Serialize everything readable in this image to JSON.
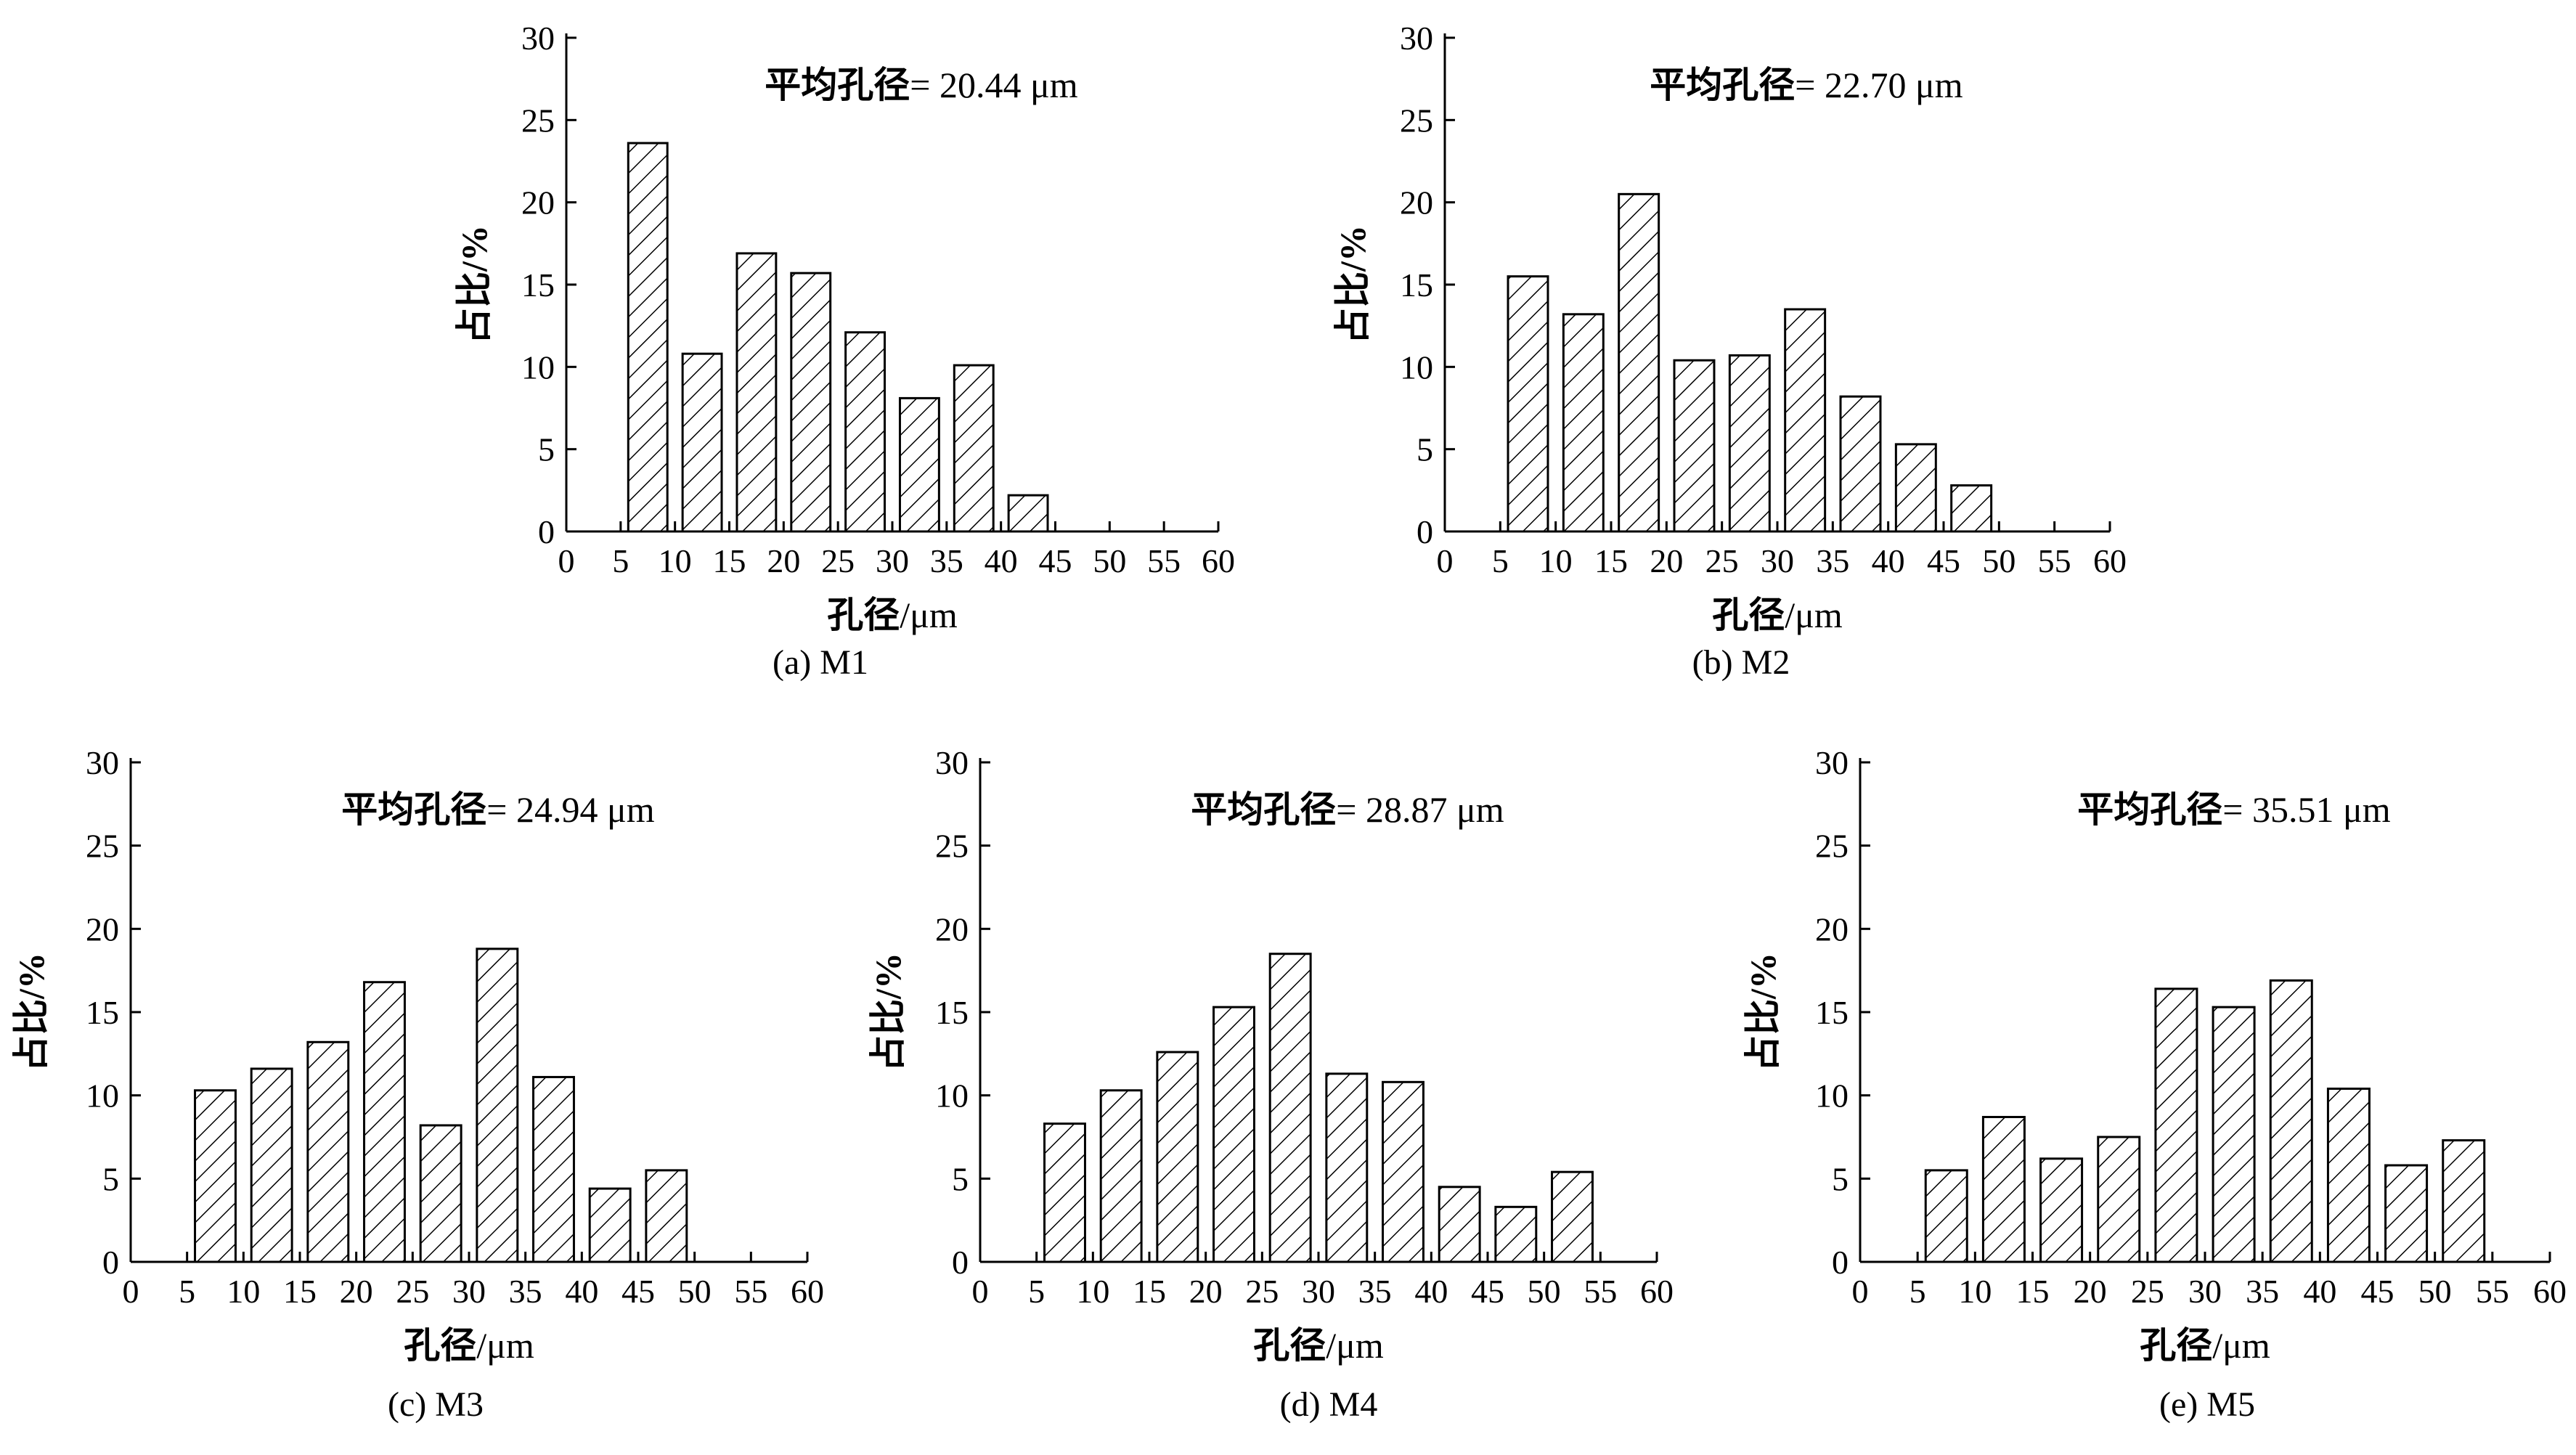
{
  "chart_data": [
    {
      "type": "bar",
      "caption": "(a) M1",
      "annotation": {
        "label": "平均孔径",
        "value": "= 20.44 μm"
      },
      "xlabel": {
        "main": "孔径",
        "unit": "/μm"
      },
      "ylabel": "占比/%",
      "xlim": [
        0,
        60
      ],
      "ylim": [
        0,
        30
      ],
      "xticks": [
        0,
        5,
        10,
        15,
        20,
        25,
        30,
        35,
        40,
        45,
        50,
        55,
        60
      ],
      "yticks": [
        0,
        5,
        10,
        15,
        20,
        25,
        30
      ],
      "bins": [
        [
          5,
          10
        ],
        [
          10,
          15
        ],
        [
          15,
          20
        ],
        [
          20,
          25
        ],
        [
          25,
          30
        ],
        [
          30,
          35
        ],
        [
          35,
          40
        ],
        [
          40,
          45
        ]
      ],
      "values": [
        23.6,
        10.8,
        16.9,
        15.7,
        12.1,
        8.1,
        10.1,
        2.2
      ],
      "grid": false,
      "pattern": "diagonal-hatch"
    },
    {
      "type": "bar",
      "caption": "(b) M2",
      "annotation": {
        "label": "平均孔径",
        "value": "= 22.70 μm"
      },
      "xlabel": {
        "main": "孔径",
        "unit": "/μm"
      },
      "ylabel": "占比/%",
      "xlim": [
        0,
        60
      ],
      "ylim": [
        0,
        30
      ],
      "xticks": [
        0,
        5,
        10,
        15,
        20,
        25,
        30,
        35,
        40,
        45,
        50,
        55,
        60
      ],
      "yticks": [
        0,
        5,
        10,
        15,
        20,
        25,
        30
      ],
      "bins": [
        [
          5,
          10
        ],
        [
          10,
          15
        ],
        [
          15,
          20
        ],
        [
          20,
          25
        ],
        [
          25,
          30
        ],
        [
          30,
          35
        ],
        [
          35,
          40
        ],
        [
          40,
          45
        ],
        [
          45,
          50
        ]
      ],
      "values": [
        15.5,
        13.2,
        20.5,
        10.4,
        10.7,
        13.5,
        8.2,
        5.3,
        2.8
      ],
      "grid": false,
      "pattern": "diagonal-hatch"
    },
    {
      "type": "bar",
      "caption": "(c) M3",
      "annotation": {
        "label": "平均孔径",
        "value": "= 24.94 μm"
      },
      "xlabel": {
        "main": "孔径",
        "unit": "/μm"
      },
      "ylabel": "占比/%",
      "xlim": [
        0,
        60
      ],
      "ylim": [
        0,
        30
      ],
      "xticks": [
        0,
        5,
        10,
        15,
        20,
        25,
        30,
        35,
        40,
        45,
        50,
        55,
        60
      ],
      "yticks": [
        0,
        5,
        10,
        15,
        20,
        25,
        30
      ],
      "bins": [
        [
          5,
          10
        ],
        [
          10,
          15
        ],
        [
          15,
          20
        ],
        [
          20,
          25
        ],
        [
          25,
          30
        ],
        [
          30,
          35
        ],
        [
          35,
          40
        ],
        [
          40,
          45
        ],
        [
          45,
          50
        ]
      ],
      "values": [
        10.3,
        11.6,
        13.2,
        16.8,
        8.2,
        18.8,
        11.1,
        4.4,
        5.5
      ],
      "grid": false,
      "pattern": "diagonal-hatch"
    },
    {
      "type": "bar",
      "caption": "(d) M4",
      "annotation": {
        "label": "平均孔径",
        "value": "= 28.87 μm"
      },
      "xlabel": {
        "main": "孔径",
        "unit": "/μm"
      },
      "ylabel": "占比/%",
      "xlim": [
        0,
        60
      ],
      "ylim": [
        0,
        30
      ],
      "xticks": [
        0,
        5,
        10,
        15,
        20,
        25,
        30,
        35,
        40,
        45,
        50,
        55,
        60
      ],
      "yticks": [
        0,
        5,
        10,
        15,
        20,
        25,
        30
      ],
      "bins": [
        [
          5,
          10
        ],
        [
          10,
          15
        ],
        [
          15,
          20
        ],
        [
          20,
          25
        ],
        [
          25,
          30
        ],
        [
          30,
          35
        ],
        [
          35,
          40
        ],
        [
          40,
          45
        ],
        [
          45,
          50
        ],
        [
          50,
          55
        ]
      ],
      "values": [
        8.3,
        10.3,
        12.6,
        15.3,
        18.5,
        11.3,
        10.8,
        4.5,
        3.3,
        5.4
      ],
      "grid": false,
      "pattern": "diagonal-hatch"
    },
    {
      "type": "bar",
      "caption": "(e) M5",
      "annotation": {
        "label": "平均孔径",
        "value": "= 35.51 μm"
      },
      "xlabel": {
        "main": "孔径",
        "unit": "/μm"
      },
      "ylabel": "占比/%",
      "xlim": [
        0,
        60
      ],
      "ylim": [
        0,
        30
      ],
      "xticks": [
        0,
        5,
        10,
        15,
        20,
        25,
        30,
        35,
        40,
        45,
        50,
        55,
        60
      ],
      "yticks": [
        0,
        5,
        10,
        15,
        20,
        25,
        30
      ],
      "bins": [
        [
          5,
          10
        ],
        [
          10,
          15
        ],
        [
          15,
          20
        ],
        [
          20,
          25
        ],
        [
          25,
          30
        ],
        [
          30,
          35
        ],
        [
          35,
          40
        ],
        [
          40,
          45
        ],
        [
          45,
          50
        ],
        [
          50,
          55
        ]
      ],
      "values": [
        5.5,
        8.7,
        6.2,
        7.5,
        16.4,
        15.3,
        16.9,
        10.4,
        5.8,
        7.3
      ],
      "grid": false,
      "pattern": "diagonal-hatch"
    }
  ]
}
